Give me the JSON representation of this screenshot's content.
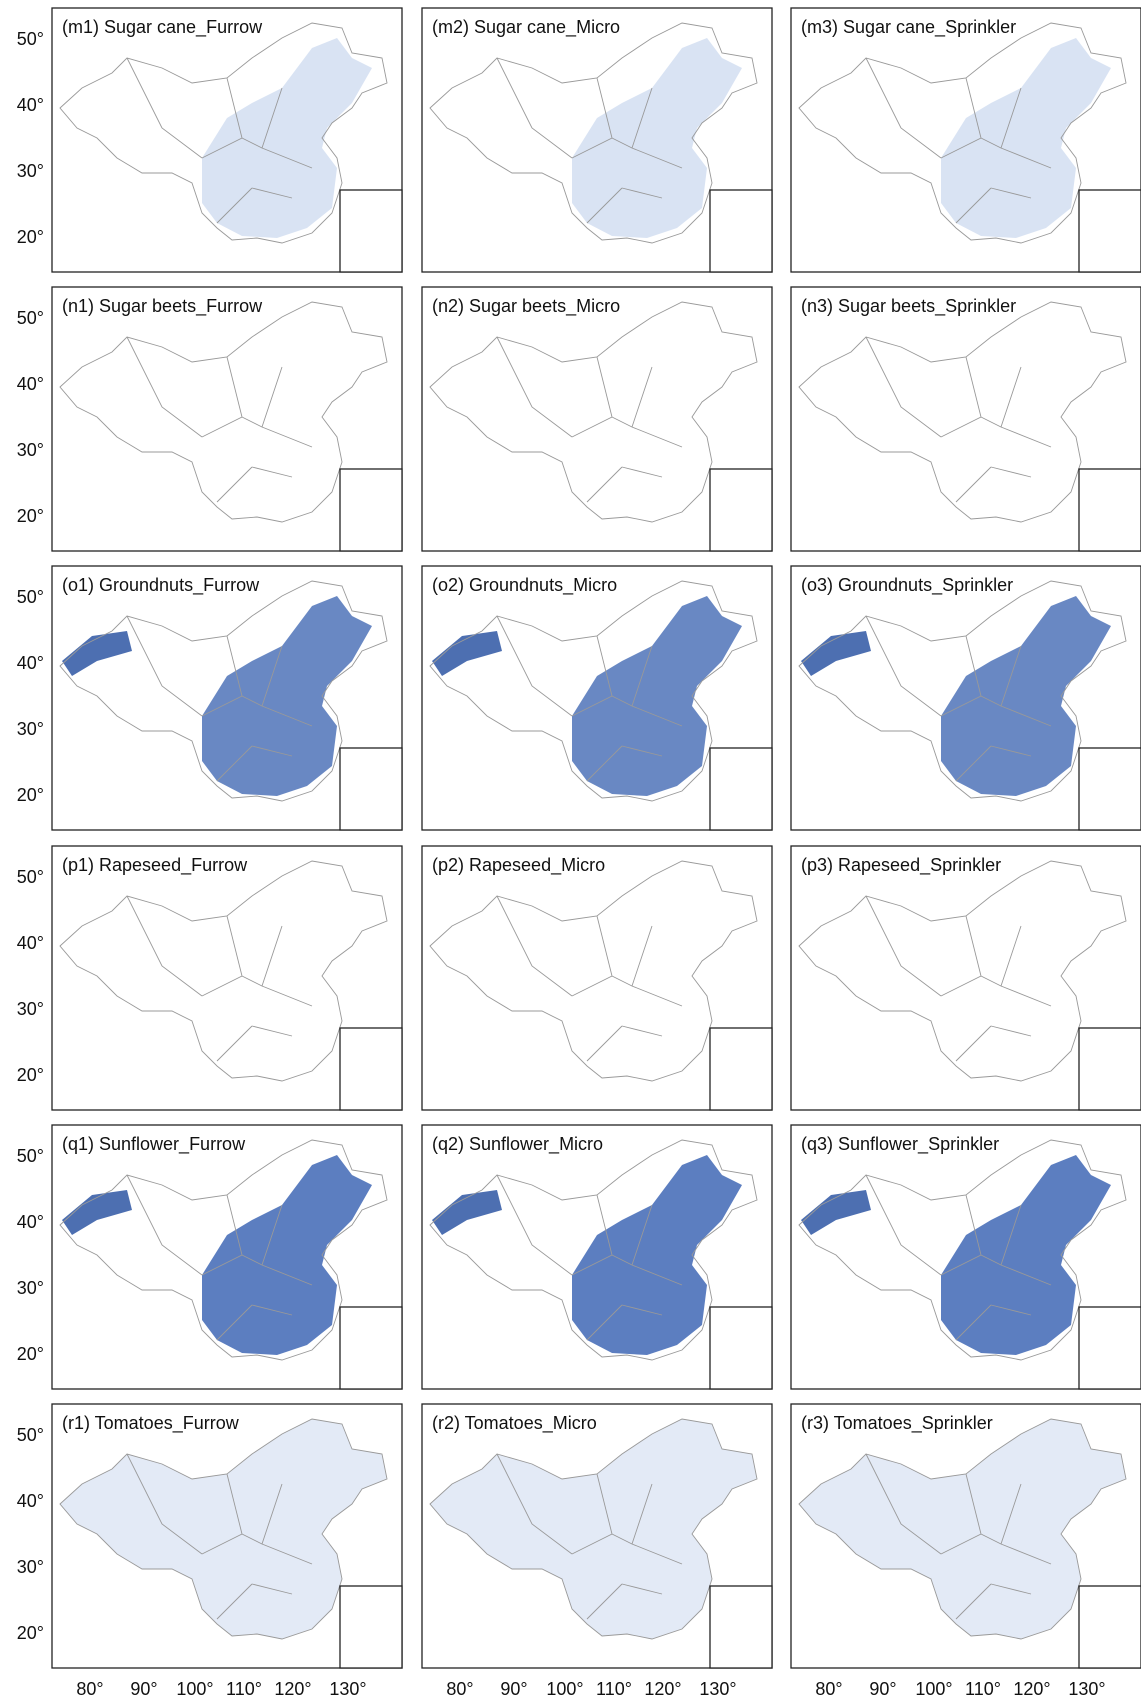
{
  "panels": [
    {
      "label": "(m1) Sugar cane_Furrow"
    },
    {
      "label": "(m2) Sugar cane_Micro"
    },
    {
      "label": "(m3) Sugar cane_Sprinkler"
    },
    {
      "label": "(n1) Sugar beets_Furrow"
    },
    {
      "label": "(n2) Sugar beets_Micro"
    },
    {
      "label": "(n3) Sugar beets_Sprinkler"
    },
    {
      "label": "(o1) Groundnuts_Furrow"
    },
    {
      "label": "(o2) Groundnuts_Micro"
    },
    {
      "label": "(o3) Groundnuts_Sprinkler"
    },
    {
      "label": "(p1) Rapeseed_Furrow"
    },
    {
      "label": "(p2) Rapeseed_Micro"
    },
    {
      "label": "(p3) Rapeseed_Sprinkler"
    },
    {
      "label": "(q1) Sunflower_Furrow"
    },
    {
      "label": "(q2) Sunflower_Micro"
    },
    {
      "label": "(q3) Sunflower_Sprinkler"
    },
    {
      "label": "(r1) Tomatoes_Furrow"
    },
    {
      "label": "(r2) Tomatoes_Micro"
    },
    {
      "label": "(r3) Tomatoes_Sprinkler"
    }
  ],
  "lat_labels": [
    "50°",
    "40°",
    "30°",
    "20°"
  ],
  "lon_labels": [
    "80°",
    "90°",
    "100°",
    "110°",
    "120°",
    "130°"
  ]
}
